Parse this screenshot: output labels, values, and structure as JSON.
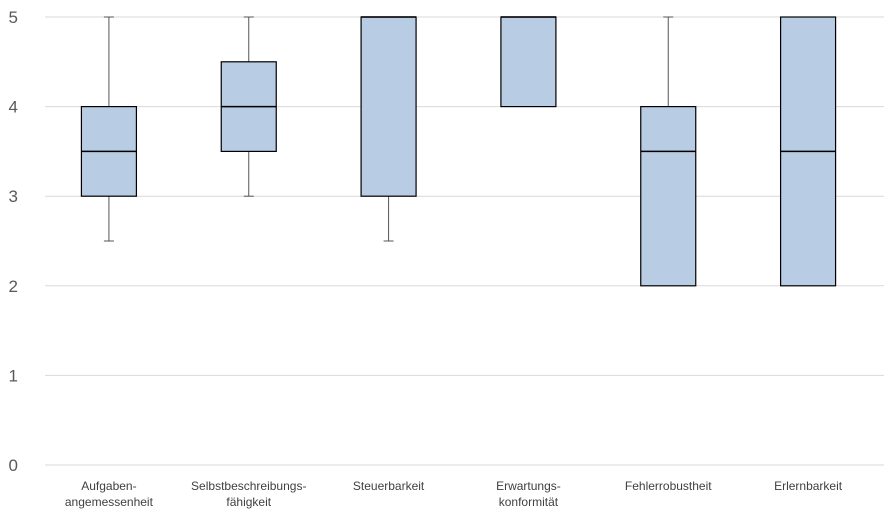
{
  "chart_data": {
    "type": "boxplot",
    "title": "",
    "xlabel": "",
    "ylabel": "",
    "ylim": [
      0,
      5
    ],
    "yticks": [
      0,
      1,
      2,
      3,
      4,
      5
    ],
    "grid": true,
    "legend": "none",
    "colors": {
      "box_fill": "#b8cce4",
      "box_stroke": "#000000",
      "whisker": "#555555",
      "grid": "#d9d9d9"
    },
    "categories": [
      {
        "label_lines": [
          "Aufgaben-",
          "angemessenheit"
        ],
        "min": 2.5,
        "q1": 3,
        "median": 3.5,
        "q3": 4,
        "max": 5
      },
      {
        "label_lines": [
          "Selbstbeschreibungs-",
          "fähigkeit"
        ],
        "min": 3,
        "q1": 3.5,
        "median": 4,
        "q3": 4.5,
        "max": 5
      },
      {
        "label_lines": [
          "Steuerbarkeit"
        ],
        "min": 2.5,
        "q1": 3,
        "median": 5,
        "q3": 5,
        "max": 5
      },
      {
        "label_lines": [
          "Erwartungs-",
          "konformität"
        ],
        "min": 4,
        "q1": 4,
        "median": 5,
        "q3": 5,
        "max": 5
      },
      {
        "label_lines": [
          "Fehlerrobustheit"
        ],
        "min": 2,
        "q1": 2,
        "median": 3.5,
        "q3": 4,
        "max": 5
      },
      {
        "label_lines": [
          "Erlernbarkeit"
        ],
        "min": 2,
        "q1": 2,
        "median": 3.5,
        "q3": 5,
        "max": 5
      }
    ]
  }
}
